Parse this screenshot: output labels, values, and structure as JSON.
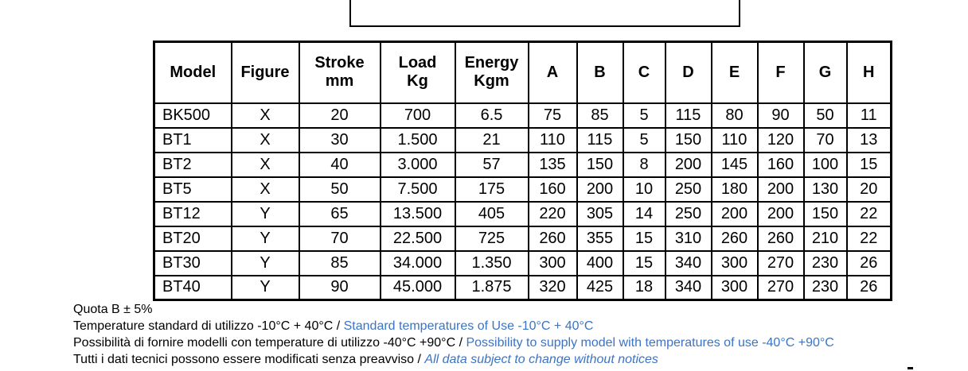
{
  "colors": {
    "blue": "#3B74C4",
    "ink": "#000000"
  },
  "table": {
    "columns": [
      {
        "id": "model",
        "line1": "Model",
        "line2": ""
      },
      {
        "id": "figure",
        "line1": "Figure",
        "line2": ""
      },
      {
        "id": "stroke",
        "line1": "Stroke",
        "line2": "mm"
      },
      {
        "id": "load",
        "line1": "Load",
        "line2": "Kg"
      },
      {
        "id": "energy",
        "line1": "Energy",
        "line2": "Kgm"
      },
      {
        "id": "A",
        "line1": "A",
        "line2": ""
      },
      {
        "id": "B",
        "line1": "B",
        "line2": ""
      },
      {
        "id": "C",
        "line1": "C",
        "line2": ""
      },
      {
        "id": "D",
        "line1": "D",
        "line2": ""
      },
      {
        "id": "E",
        "line1": "E",
        "line2": ""
      },
      {
        "id": "F",
        "line1": "F",
        "line2": ""
      },
      {
        "id": "G",
        "line1": "G",
        "line2": ""
      },
      {
        "id": "H",
        "line1": "H",
        "line2": ""
      }
    ],
    "rows": [
      {
        "model": "BK500",
        "figure": "X",
        "stroke": "20",
        "load": "700",
        "energy": "6.5",
        "A": "75",
        "B": "85",
        "C": "5",
        "D": "115",
        "E": "80",
        "F": "90",
        "G": "50",
        "H": "11"
      },
      {
        "model": "BT1",
        "figure": "X",
        "stroke": "30",
        "load": "1.500",
        "energy": "21",
        "A": "110",
        "B": "115",
        "C": "5",
        "D": "150",
        "E": "110",
        "F": "120",
        "G": "70",
        "H": "13"
      },
      {
        "model": "BT2",
        "figure": "X",
        "stroke": "40",
        "load": "3.000",
        "energy": "57",
        "A": "135",
        "B": "150",
        "C": "8",
        "D": "200",
        "E": "145",
        "F": "160",
        "G": "100",
        "H": "15"
      },
      {
        "model": "BT5",
        "figure": "X",
        "stroke": "50",
        "load": "7.500",
        "energy": "175",
        "A": "160",
        "B": "200",
        "C": "10",
        "D": "250",
        "E": "180",
        "F": "200",
        "G": "130",
        "H": "20"
      },
      {
        "model": "BT12",
        "figure": "Y",
        "stroke": "65",
        "load": "13.500",
        "energy": "405",
        "A": "220",
        "B": "305",
        "C": "14",
        "D": "250",
        "E": "200",
        "F": "200",
        "G": "150",
        "H": "22"
      },
      {
        "model": "BT20",
        "figure": "Y",
        "stroke": "70",
        "load": "22.500",
        "energy": "725",
        "A": "260",
        "B": "355",
        "C": "15",
        "D": "310",
        "E": "260",
        "F": "260",
        "G": "210",
        "H": "22"
      },
      {
        "model": "BT30",
        "figure": "Y",
        "stroke": "85",
        "load": "34.000",
        "energy": "1.350",
        "A": "300",
        "B": "400",
        "C": "15",
        "D": "340",
        "E": "300",
        "F": "270",
        "G": "230",
        "H": "26"
      },
      {
        "model": "BT40",
        "figure": "Y",
        "stroke": "90",
        "load": "45.000",
        "energy": "1.875",
        "A": "320",
        "B": "425",
        "C": "18",
        "D": "340",
        "E": "300",
        "F": "270",
        "G": "230",
        "H": "26"
      }
    ]
  },
  "notes": [
    {
      "italian": "Quota B ± 5%",
      "english": "",
      "italic": false
    },
    {
      "italian": "Temperature standard di utilizzo -10°C + 40°C / ",
      "english": "Standard temperatures of Use -10°C + 40°C",
      "italic": false
    },
    {
      "italian": "Possibilità di fornire modelli con temperature di utilizzo -40°C +90°C / ",
      "english": "Possibility to supply model with temperatures of use -40°C +90°C",
      "italic": false
    },
    {
      "italian": "Tutti i dati tecnici possono essere modificati senza preavviso / ",
      "english": "All data subject to change without notices",
      "italic": true
    }
  ]
}
